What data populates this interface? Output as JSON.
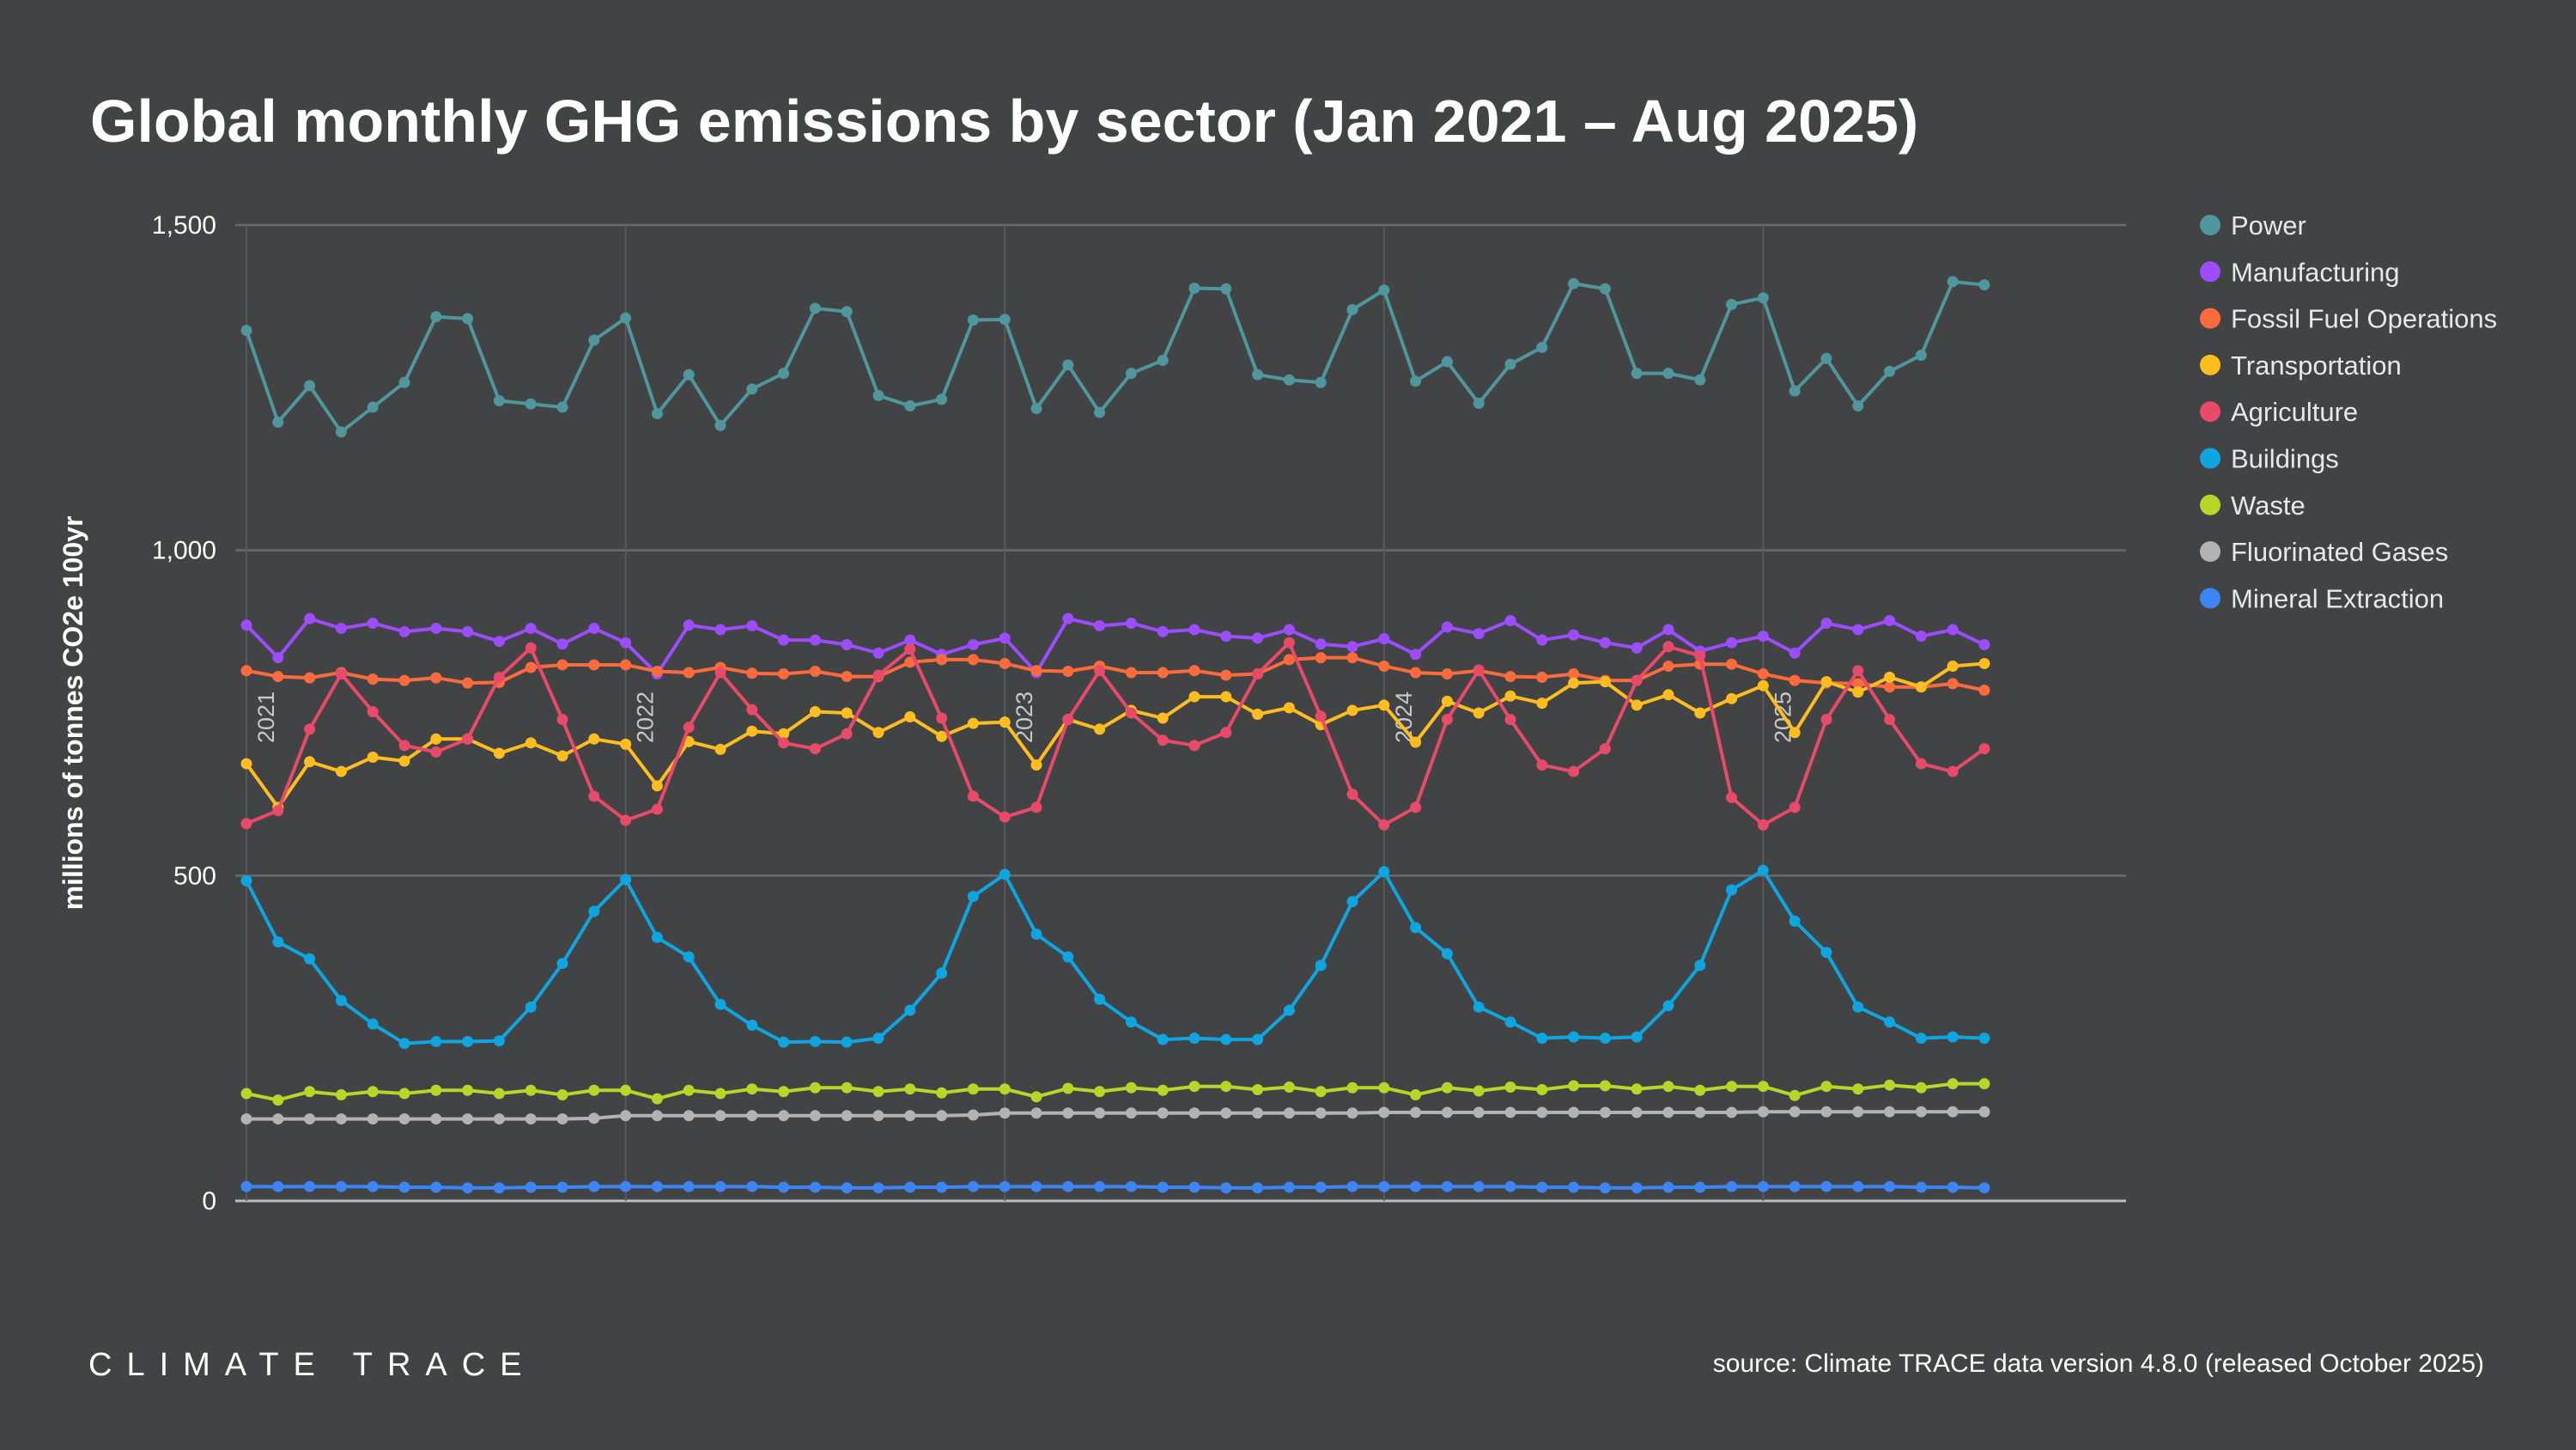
{
  "chart_data": {
    "type": "line",
    "title": "Global monthly GHG emissions by sector (Jan 2021 – Aug 2025)",
    "ylabel": "millions of tonnes CO2e 100yr",
    "ylim": [
      0,
      1500
    ],
    "yticks": [
      {
        "v": 0,
        "label": "0"
      },
      {
        "v": 500,
        "label": "500"
      },
      {
        "v": 1000,
        "label": "1,000"
      },
      {
        "v": 1500,
        "label": "1,500"
      }
    ],
    "x_start": "2021-01",
    "x_end": "2025-08",
    "year_labels": [
      "2021",
      "2022",
      "2023",
      "2024",
      "2025"
    ],
    "grid": true,
    "legend": "right",
    "series": [
      {
        "name": "Power",
        "color": "#4f979d",
        "values": [
          1338,
          1197,
          1253,
          1182,
          1220,
          1258,
          1359,
          1356,
          1230,
          1225,
          1220,
          1323,
          1357,
          1210,
          1270,
          1192,
          1248,
          1272,
          1372,
          1367,
          1238,
          1222,
          1232,
          1354,
          1355,
          1218,
          1285,
          1212,
          1272,
          1292,
          1403,
          1402,
          1270,
          1262,
          1258,
          1370,
          1400,
          1260,
          1290,
          1226,
          1286,
          1312,
          1410,
          1402,
          1272,
          1272,
          1262,
          1378,
          1388,
          1245,
          1295,
          1222,
          1275,
          1300,
          1413,
          1408
        ]
      },
      {
        "name": "Manufacturing",
        "color": "#9b4dff",
        "values": [
          885,
          835,
          895,
          880,
          888,
          875,
          880,
          875,
          860,
          880,
          856,
          880,
          858,
          810,
          885,
          878,
          884,
          862,
          862,
          855,
          842,
          862,
          840,
          855,
          865,
          812,
          895,
          884,
          888,
          875,
          878,
          868,
          865,
          878,
          856,
          852,
          864,
          840,
          882,
          872,
          892,
          862,
          870,
          858,
          850,
          878,
          845,
          858,
          868,
          842,
          888,
          878,
          892,
          868,
          878,
          855
        ]
      },
      {
        "name": "Fossil Fuel Operations",
        "color": "#ff6b3d",
        "values": [
          815,
          806,
          804,
          812,
          802,
          800,
          804,
          796,
          797,
          820,
          824,
          824,
          824,
          814,
          812,
          820,
          811,
          810,
          814,
          806,
          806,
          828,
          832,
          832,
          826,
          815,
          814,
          822,
          812,
          812,
          815,
          808,
          810,
          832,
          835,
          835,
          822,
          812,
          810,
          815,
          806,
          805,
          810,
          800,
          800,
          822,
          825,
          825,
          810,
          800,
          796,
          795,
          790,
          790,
          795,
          785
        ]
      },
      {
        "name": "Transportation",
        "color": "#ffbd1f",
        "values": [
          672,
          605,
          675,
          660,
          682,
          676,
          710,
          710,
          688,
          704,
          684,
          710,
          702,
          638,
          706,
          694,
          722,
          718,
          752,
          750,
          720,
          744,
          714,
          734,
          736,
          670,
          740,
          725,
          754,
          742,
          775,
          775,
          748,
          758,
          732,
          754,
          762,
          705,
          768,
          750,
          776,
          765,
          796,
          798,
          762,
          778,
          750,
          772,
          792,
          720,
          798,
          782,
          805,
          790,
          822,
          826
        ]
      },
      {
        "name": "Agriculture",
        "color": "#e84a6a",
        "values": [
          580,
          600,
          725,
          810,
          752,
          700,
          690,
          710,
          805,
          850,
          740,
          622,
          585,
          602,
          728,
          812,
          755,
          704,
          695,
          718,
          808,
          848,
          742,
          622,
          590,
          605,
          740,
          815,
          750,
          708,
          700,
          720,
          810,
          858,
          745,
          625,
          578,
          605,
          740,
          816,
          740,
          670,
          660,
          695,
          800,
          852,
          838,
          620,
          578,
          605,
          740,
          815,
          740,
          672,
          660,
          695
        ]
      },
      {
        "name": "Buildings",
        "color": "#0ea5e0",
        "values": [
          492,
          398,
          372,
          308,
          272,
          242,
          245,
          245,
          246,
          298,
          365,
          445,
          494,
          405,
          375,
          302,
          270,
          244,
          245,
          244,
          250,
          293,
          350,
          468,
          502,
          410,
          375,
          310,
          275,
          248,
          250,
          248,
          248,
          293,
          362,
          460,
          506,
          420,
          380,
          298,
          275,
          250,
          252,
          250,
          252,
          300,
          362,
          478,
          508,
          430,
          382,
          298,
          275,
          250,
          252,
          250
        ]
      },
      {
        "name": "Waste",
        "color": "#b6d629",
        "values": [
          165,
          155,
          168,
          163,
          168,
          165,
          170,
          170,
          165,
          170,
          163,
          170,
          170,
          157,
          170,
          165,
          172,
          168,
          174,
          174,
          168,
          172,
          166,
          172,
          172,
          160,
          173,
          168,
          174,
          170,
          176,
          176,
          171,
          175,
          168,
          174,
          174,
          163,
          174,
          169,
          175,
          171,
          177,
          177,
          172,
          176,
          170,
          176,
          176,
          162,
          176,
          172,
          178,
          174,
          180,
          180
        ]
      },
      {
        "name": "Fluorinated Gases",
        "color": "#b3b3b3",
        "values": [
          126,
          126,
          126,
          126,
          126,
          126,
          126,
          126,
          126,
          126,
          126,
          127,
          131,
          131,
          131,
          131,
          131,
          131,
          131,
          131,
          131,
          131,
          131,
          132,
          135,
          135,
          135,
          135,
          135,
          135,
          135,
          135,
          135,
          135,
          135,
          135,
          136,
          136,
          136,
          136,
          136,
          136,
          136,
          136,
          136,
          136,
          136,
          136,
          137,
          137,
          137,
          137,
          137,
          137,
          137,
          137
        ]
      },
      {
        "name": "Mineral Extraction",
        "color": "#3d85f5",
        "values": [
          22,
          22,
          22,
          22,
          22,
          21,
          21,
          20,
          20,
          21,
          21,
          22,
          22,
          22,
          22,
          22,
          22,
          21,
          21,
          20,
          20,
          21,
          21,
          22,
          22,
          22,
          22,
          22,
          22,
          21,
          21,
          20,
          20,
          21,
          21,
          22,
          22,
          22,
          22,
          22,
          22,
          21,
          21,
          20,
          20,
          21,
          21,
          22,
          22,
          22,
          22,
          22,
          22,
          21,
          21,
          20
        ]
      }
    ]
  },
  "footer": {
    "logo": "CLIMATE TRACE",
    "source": "source: Climate TRACE data version 4.8.0 (released October 2025)"
  }
}
